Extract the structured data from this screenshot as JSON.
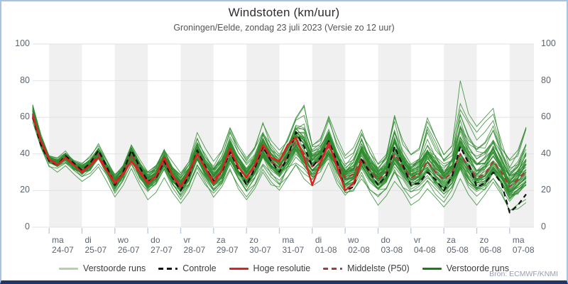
{
  "header": {
    "title": "Windstoten (km/uur)",
    "subtitle": "Groningen/Eelde, zondag 23 juli 2023 (Versie zo 12 uur)"
  },
  "source": "Bron: ECMWF/KNMI",
  "colors": {
    "frame_light_blue": "#a6c3e3",
    "frame_bottom_navy": "#233468",
    "day_band": "#f0f0f0",
    "gridline": "#e2e2e2",
    "x_tick": "#b5c6df",
    "axis_text": "#5b6570",
    "ensemble_green": "#2e8b2e",
    "legend_light_green": "#b2d3aa",
    "legend_dark_green": "#157f15",
    "control_black": "#111111",
    "hires_red": "#e02020",
    "p50_dark_red": "#aa3a3a"
  },
  "chart_data": {
    "type": "line",
    "title": "Windstoten (km/uur)",
    "subtitle": "Groningen/Eelde, zondag 23 juli 2023 (Versie zo 12 uur)",
    "ylabel": "",
    "xlabel": "",
    "ylim": [
      0,
      100
    ],
    "yticks": [
      0,
      20,
      40,
      60,
      80,
      100
    ],
    "grid": true,
    "legend_position": "bottom-center",
    "start": "zo 23-07 12:00",
    "step_hours": 6,
    "n_points": 61,
    "days": [
      {
        "name": "ma",
        "date": "24-07"
      },
      {
        "name": "di",
        "date": "25-07"
      },
      {
        "name": "wo",
        "date": "26-07"
      },
      {
        "name": "do",
        "date": "27-07"
      },
      {
        "name": "vr",
        "date": "28-07"
      },
      {
        "name": "za",
        "date": "29-07"
      },
      {
        "name": "zo",
        "date": "30-07"
      },
      {
        "name": "ma",
        "date": "31-07"
      },
      {
        "name": "di",
        "date": "01-08"
      },
      {
        "name": "wo",
        "date": "02-08"
      },
      {
        "name": "do",
        "date": "03-08"
      },
      {
        "name": "vr",
        "date": "04-08"
      },
      {
        "name": "za",
        "date": "05-08"
      },
      {
        "name": "zo",
        "date": "06-08"
      },
      {
        "name": "ma",
        "date": "07-08"
      }
    ],
    "series": [
      {
        "name": "Controle",
        "color": "#111111",
        "dash": true,
        "width": 2.2,
        "values": [
          60,
          45,
          36,
          34,
          39,
          35,
          31,
          35,
          42,
          33,
          23,
          30,
          42,
          33,
          25,
          27,
          36,
          27,
          20,
          28,
          42,
          33,
          25,
          30,
          41,
          32,
          23,
          32,
          44,
          36,
          30,
          38,
          52,
          44,
          33,
          38,
          47,
          36,
          20,
          22,
          37,
          30,
          23,
          28,
          44,
          34,
          23,
          24,
          30,
          26,
          20,
          28,
          44,
          35,
          22,
          24,
          30,
          24,
          8,
          12,
          18
        ]
      },
      {
        "name": "Hoge resolutie",
        "color": "#e02020",
        "dash": false,
        "width": 2.4,
        "values": [
          61,
          47,
          37,
          34,
          38,
          34,
          30,
          34,
          38,
          31,
          24,
          29,
          36,
          30,
          24,
          28,
          38,
          28,
          22,
          30,
          40,
          32,
          24,
          31,
          43,
          33,
          27,
          34,
          45,
          38,
          36,
          45,
          49,
          38,
          23,
          35,
          46,
          33,
          20,
          24,
          36
        ]
      },
      {
        "name": "Middelste (P50)",
        "color": "#aa3a3a",
        "dash": true,
        "width": 2.2,
        "values": [
          62,
          46,
          37,
          35,
          38,
          34,
          31,
          34,
          40,
          32,
          25,
          30,
          40,
          31,
          25,
          28,
          36,
          28,
          23,
          29,
          40,
          32,
          26,
          31,
          41,
          33,
          27,
          33,
          43,
          36,
          33,
          39,
          47,
          40,
          33,
          37,
          44,
          35,
          27,
          29,
          38,
          31,
          26,
          30,
          40,
          33,
          27,
          29,
          36,
          30,
          26,
          30,
          40,
          33,
          27,
          29,
          36,
          30,
          22,
          26,
          31
        ]
      }
    ],
    "ensemble": {
      "name": "Verstoorde runs",
      "count": 50,
      "color": "#2e8b2e",
      "min": [
        56,
        42,
        33,
        30,
        33,
        29,
        25,
        28,
        33,
        25,
        15,
        22,
        32,
        23,
        15,
        19,
        27,
        19,
        13,
        19,
        29,
        21,
        15,
        20,
        29,
        21,
        15,
        21,
        30,
        23,
        18,
        25,
        32,
        25,
        18,
        22,
        30,
        21,
        13,
        16,
        24,
        17,
        12,
        16,
        25,
        18,
        12,
        15,
        21,
        16,
        11,
        16,
        24,
        17,
        12,
        15,
        20,
        15,
        8,
        10,
        13
      ],
      "max": [
        74,
        56,
        42,
        40,
        44,
        39,
        38,
        42,
        50,
        40,
        33,
        38,
        50,
        40,
        34,
        38,
        47,
        38,
        32,
        39,
        52,
        43,
        36,
        42,
        55,
        45,
        38,
        45,
        58,
        48,
        43,
        52,
        65,
        72,
        50,
        52,
        65,
        50,
        40,
        45,
        58,
        46,
        38,
        44,
        68,
        48,
        40,
        45,
        62,
        50,
        42,
        48,
        80,
        62,
        55,
        60,
        65,
        48,
        38,
        42,
        57
      ]
    },
    "legend": [
      {
        "label": "Verstoorde runs",
        "color": "#b2d3aa",
        "dash": false
      },
      {
        "label": "Controle",
        "color": "#111111",
        "dash": true
      },
      {
        "label": "Hoge resolutie",
        "color": "#e02020",
        "dash": false
      },
      {
        "label": "Middelste (P50)",
        "color": "#aa3a3a",
        "dash": true
      },
      {
        "label": "Verstoorde runs",
        "color": "#157f15",
        "dash": false
      }
    ]
  }
}
